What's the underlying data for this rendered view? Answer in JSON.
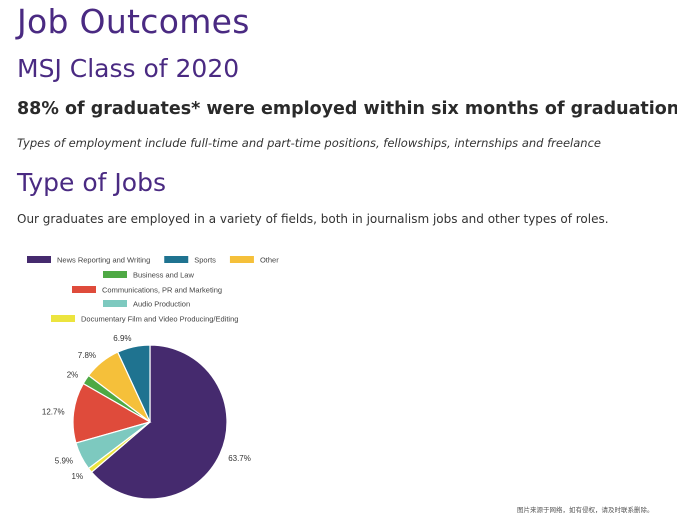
{
  "page": {
    "title": "Job Outcomes",
    "subtitle": "MSJ Class of 2020",
    "headline_stat": "88% of graduates* were employed within six months of graduation",
    "footnote": "Types of employment include full-time and part-time positions, fellowships, internships and freelance",
    "section_title": "Type of Jobs",
    "intro": "Our graduates are employed in a variety of fields, both in journalism jobs and other types of roles.",
    "watermark": "图片来源于网络，如有侵权，请及时联系删除。"
  },
  "chart_data": {
    "type": "pie",
    "legend_position": "top",
    "slices": [
      {
        "label": "News Reporting and Writing",
        "value": 63.7,
        "display": "63.7%",
        "color": "#452a6e"
      },
      {
        "label": "Sports",
        "value": 6.9,
        "display": "6.9%",
        "color": "#1f7390"
      },
      {
        "label": "Other",
        "value": 7.8,
        "display": "7.8%",
        "color": "#f5c03a"
      },
      {
        "label": "Business and Law",
        "value": 2,
        "display": "2%",
        "color": "#4ea944"
      },
      {
        "label": "Communications, PR and Marketing",
        "value": 12.7,
        "display": "12.7%",
        "color": "#df4b3b"
      },
      {
        "label": "Audio Production",
        "value": 5.9,
        "display": "5.9%",
        "color": "#7dc9bf"
      },
      {
        "label": "Documentary Film and Video Producing/Editing",
        "value": 1,
        "display": "1%",
        "color": "#ece43e"
      }
    ]
  }
}
